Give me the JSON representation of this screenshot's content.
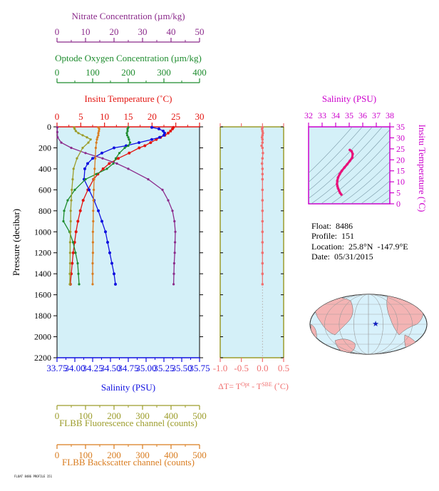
{
  "colors": {
    "nitrate": "#8b2a8b",
    "oxygen": "#1e8c2e",
    "temperature": "#e3140f",
    "salinity": "#1010e0",
    "fluorescence": "#9c9c2a",
    "backscatter": "#d97c1f",
    "delta_t": "#f07070",
    "ts_axis": "#cc00cc",
    "ts_trace": "#e8107a",
    "panel_bg": "#d4f0f8"
  },
  "info": {
    "float": "Float:  8486",
    "profile": "Profile:  151",
    "location": "Location:  25.8°N  -147.9°E",
    "date": "Date:  05/31/2015"
  },
  "footer": "FLOAT 8486 PROFILE 151",
  "chart_data": [
    {
      "type": "line",
      "panel": "main",
      "ylabel": "Pressure (decibar)",
      "ylim": [
        2200,
        0
      ],
      "yticks": [
        "0",
        "200",
        "400",
        "600",
        "800",
        "1000",
        "1200",
        "1400",
        "1600",
        "1800",
        "2000",
        "2200"
      ],
      "axes": [
        {
          "key": "nitrate",
          "label": "Nitrate Concentration (µm/kg)",
          "ticks": [
            "0",
            "10",
            "20",
            "30",
            "40",
            "50"
          ],
          "range": [
            0,
            50
          ]
        },
        {
          "key": "oxygen",
          "label": "Optode Oxygen Concentration (µm/kg)",
          "ticks": [
            "0",
            "100",
            "200",
            "300",
            "400"
          ],
          "range": [
            0,
            400
          ]
        },
        {
          "key": "temperature",
          "label": "Insitu Temperature (˚C)",
          "ticks": [
            "0",
            "5",
            "10",
            "15",
            "20",
            "25",
            "30"
          ],
          "range": [
            0,
            30
          ]
        },
        {
          "key": "salinity",
          "label": "Salinity (PSU)",
          "ticks": [
            "33.75",
            "34.00",
            "34.25",
            "34.50",
            "34.75",
            "35.00",
            "35.25",
            "35.50",
            "35.75"
          ],
          "range": [
            33.75,
            35.75
          ]
        },
        {
          "key": "fluorescence",
          "label": "FLBB Fluorescence channel (counts)",
          "ticks": [
            "0",
            "100",
            "200",
            "300",
            "400",
            "500"
          ],
          "range": [
            0,
            500
          ]
        },
        {
          "key": "backscatter",
          "label": "FLBB Backscatter channel (counts)",
          "ticks": [
            "0",
            "100",
            "200",
            "300",
            "400",
            "500"
          ],
          "range": [
            0,
            500
          ]
        }
      ],
      "series": [
        {
          "key": "temperature",
          "p": [
            5,
            20,
            40,
            60,
            80,
            100,
            120,
            150,
            180,
            200,
            250,
            300,
            350,
            400,
            450,
            500,
            600,
            700,
            800,
            900,
            1000,
            1100,
            1200,
            1300,
            1400,
            1500
          ],
          "v": [
            24.5,
            24.3,
            23.9,
            23.4,
            22.7,
            21.8,
            20.9,
            19.7,
            18.5,
            17.3,
            15.2,
            12.9,
            11.0,
            9.7,
            8.6,
            7.7,
            6.5,
            5.5,
            4.9,
            4.4,
            4.0,
            3.7,
            3.4,
            3.2,
            3.0,
            2.8
          ]
        },
        {
          "key": "salinity",
          "p": [
            5,
            20,
            40,
            60,
            80,
            100,
            120,
            150,
            180,
            200,
            250,
            300,
            350,
            400,
            500,
            600,
            700,
            800,
            900,
            1000,
            1100,
            1200,
            1300,
            1400,
            1500
          ],
          "v": [
            35.08,
            35.18,
            35.24,
            35.26,
            35.25,
            35.19,
            35.08,
            34.9,
            34.72,
            34.55,
            34.38,
            34.25,
            34.18,
            34.14,
            34.13,
            34.2,
            34.27,
            34.33,
            34.38,
            34.43,
            34.46,
            34.49,
            34.52,
            34.55,
            34.57
          ]
        },
        {
          "key": "oxygen",
          "p": [
            5,
            20,
            40,
            60,
            80,
            100,
            120,
            150,
            180,
            200,
            250,
            300,
            350,
            400,
            450,
            500,
            600,
            700,
            800,
            900,
            1000,
            1100,
            1200,
            1300,
            1400,
            1500
          ],
          "v": [
            200,
            198,
            198,
            196,
            197,
            200,
            202,
            205,
            200,
            190,
            175,
            165,
            158,
            140,
            110,
            80,
            50,
            30,
            20,
            18,
            35,
            45,
            52,
            58,
            60,
            62
          ]
        },
        {
          "key": "nitrate",
          "p": [
            5,
            50,
            100,
            150,
            200,
            250,
            300,
            350,
            400,
            500,
            600,
            700,
            800,
            900,
            1000,
            1100,
            1200,
            1300,
            1400,
            1500
          ],
          "v": [
            0.1,
            0.1,
            0.2,
            1.5,
            5,
            10,
            16,
            21,
            25,
            32,
            37,
            39,
            40.5,
            41.2,
            41.5,
            41.4,
            41.3,
            41.1,
            41.0,
            40.9
          ]
        },
        {
          "key": "fluorescence",
          "p": [
            5,
            20,
            40,
            60,
            80,
            100,
            120,
            150,
            200,
            300,
            400,
            500,
            600,
            700,
            800,
            900,
            1000,
            1100,
            1200,
            1300,
            1400,
            1500
          ],
          "v": [
            60,
            62,
            66,
            75,
            90,
            105,
            118,
            110,
            90,
            70,
            58,
            55,
            52,
            50,
            48,
            48,
            47,
            46,
            46,
            46,
            45,
            45
          ]
        },
        {
          "key": "backscatter",
          "p": [
            5,
            20,
            40,
            60,
            80,
            100,
            120,
            150,
            200,
            300,
            400,
            500,
            600,
            700,
            800,
            900,
            1000,
            1100,
            1200,
            1300,
            1400,
            1500
          ],
          "v": [
            145,
            148,
            147,
            145,
            145,
            142,
            140,
            138,
            136,
            134,
            132,
            130,
            129,
            128,
            127,
            127,
            126,
            126,
            126,
            125,
            125,
            125
          ]
        }
      ]
    },
    {
      "type": "scatter",
      "panel": "delta_t",
      "xlabel_main": "ΔT= T",
      "xlabel_sup1": "Opt",
      "xlabel_mid": " - T",
      "xlabel_sup2": "SBE",
      "xlabel_unit": " (˚C)",
      "xlim": [
        -1.0,
        0.5
      ],
      "xticks": [
        "-1.0",
        "-0.5",
        "0.0",
        "0.5"
      ],
      "p": [
        5,
        20,
        40,
        60,
        80,
        100,
        120,
        150,
        180,
        200,
        250,
        300,
        350,
        400,
        450,
        500,
        600,
        700,
        800,
        900,
        1000,
        1100,
        1200,
        1300,
        1400,
        1500
      ],
      "v": [
        0.0,
        -0.01,
        0.0,
        0.01,
        0.0,
        -0.01,
        0.0,
        0.0,
        -0.02,
        0.0,
        0.01,
        0.0,
        -0.01,
        0.0,
        0.0,
        0.0,
        0.0,
        0.0,
        0.0,
        0.0,
        0.0,
        0.0,
        0.0,
        0.0,
        0.0,
        0.0
      ]
    },
    {
      "type": "line",
      "panel": "ts",
      "title": "Salinity (PSU)",
      "ylabel": "Insitu Temperature (˚C)",
      "xlim": [
        32,
        38
      ],
      "ylim": [
        0,
        35
      ],
      "xticks": [
        "32",
        "33",
        "34",
        "35",
        "36",
        "37",
        "38"
      ],
      "yticks": [
        "0",
        "5",
        "10",
        "15",
        "20",
        "25",
        "30",
        "35"
      ],
      "s": [
        35.05,
        35.18,
        35.26,
        35.22,
        35.05,
        34.85,
        34.65,
        34.45,
        34.3,
        34.18,
        34.12,
        34.1,
        34.13,
        34.18,
        34.25,
        34.32,
        34.42
      ],
      "t": [
        24.5,
        23.9,
        22.7,
        21.0,
        19.5,
        18.0,
        16.5,
        15.0,
        13.5,
        12.0,
        10.5,
        9.0,
        8.0,
        7.0,
        6.0,
        5.0,
        4.2
      ]
    }
  ]
}
